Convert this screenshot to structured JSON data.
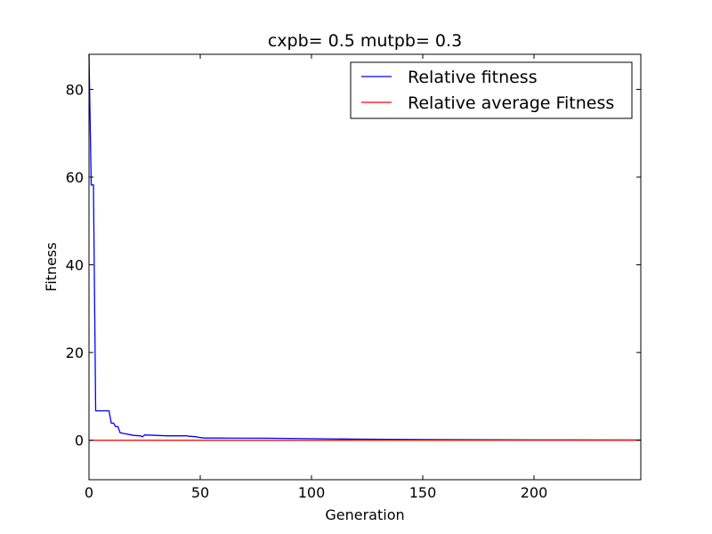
{
  "chart_data": {
    "type": "line",
    "title": "cxpb= 0.5 mutpb= 0.3",
    "xlabel": "Generation",
    "ylabel": "Fitness",
    "xlim": [
      0,
      248
    ],
    "ylim": [
      -9,
      88
    ],
    "xticks": [
      0,
      50,
      100,
      150,
      200
    ],
    "yticks": [
      0,
      20,
      40,
      60,
      80
    ],
    "grid": false,
    "legend_position": "top-right",
    "series": [
      {
        "name": "Relative fitness",
        "color": "#0000ff",
        "x": [
          0,
          1,
          2,
          3,
          9,
          10,
          11,
          12,
          13,
          14,
          16,
          20,
          23,
          24,
          25,
          30,
          35,
          40,
          44,
          45,
          48,
          50,
          52,
          60,
          80,
          100,
          120,
          150,
          200,
          248
        ],
        "y": [
          88,
          58.2,
          58.2,
          6.7,
          6.7,
          3.9,
          3.9,
          3.1,
          3.1,
          1.7,
          1.5,
          1.1,
          1.0,
          0.8,
          1.2,
          1.1,
          1.0,
          1.0,
          1.0,
          0.9,
          0.8,
          0.6,
          0.5,
          0.5,
          0.45,
          0.35,
          0.25,
          0.15,
          0.08,
          0.05
        ]
      },
      {
        "name": "Relative average Fitness",
        "color": "#ff0000",
        "x": [
          0,
          248
        ],
        "y": [
          0.0,
          0.0
        ]
      }
    ]
  }
}
